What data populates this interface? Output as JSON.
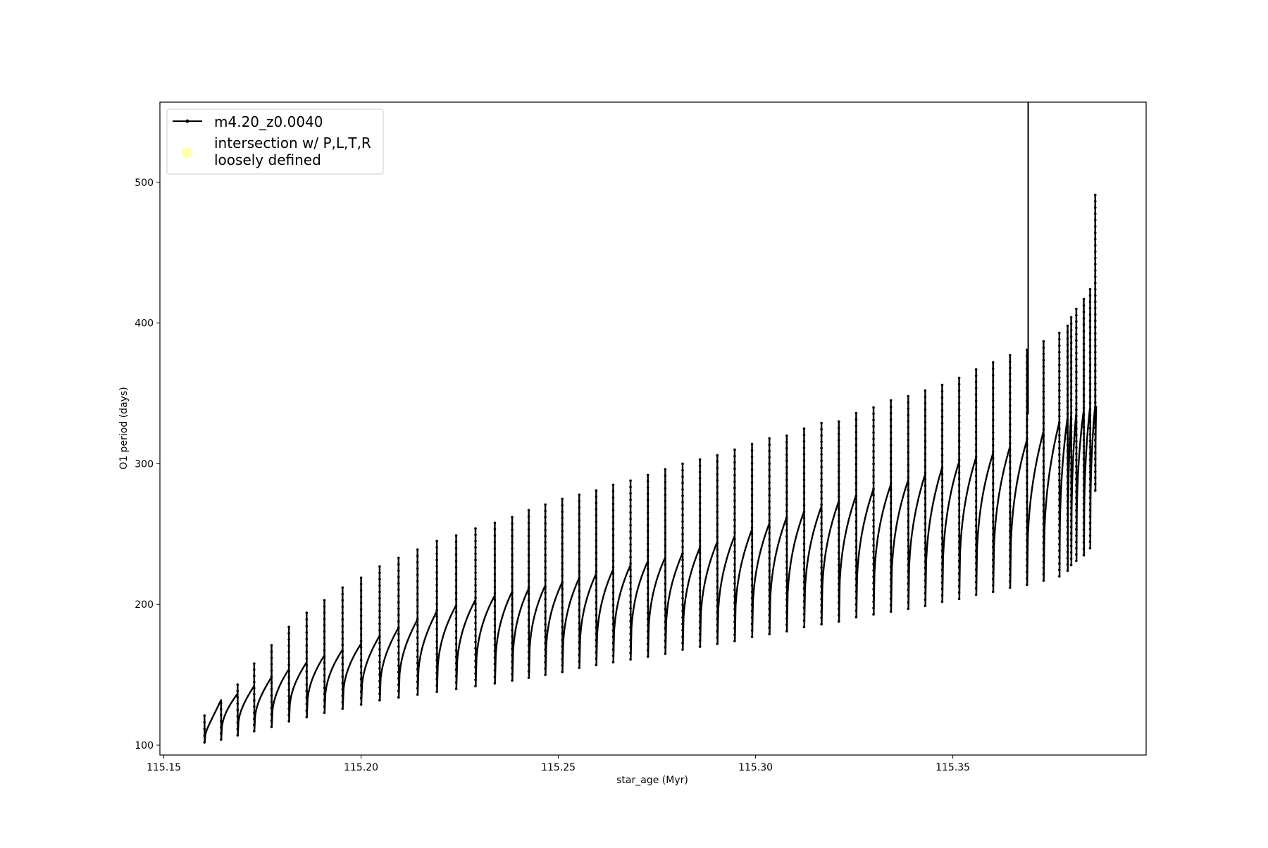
{
  "chart_data": {
    "type": "line",
    "title": "",
    "xlabel": "star_age (Myr)",
    "ylabel": "O1 period (days)",
    "xlim": [
      115.149,
      115.399
    ],
    "ylim": [
      93,
      557
    ],
    "xticks": [
      115.15,
      115.2,
      115.25,
      115.3,
      115.35
    ],
    "xtick_labels": [
      "115.15",
      "115.20",
      "115.25",
      "115.30",
      "115.35"
    ],
    "yticks": [
      100,
      200,
      300,
      400,
      500
    ],
    "ytick_labels": [
      "100",
      "200",
      "300",
      "400",
      "500"
    ],
    "grid": false,
    "legend_position": "upper-left",
    "colors": {
      "line": "#000000",
      "intersection": "#ffffb3"
    },
    "series": [
      {
        "name": "m4.20_z0.0040",
        "style": "line-with-dot-markers",
        "x_range": [
          115.1603,
          115.3861
        ],
        "pulse_count": 56,
        "pulse_peak_x": [
          115.1603,
          115.1645,
          115.1687,
          115.1729,
          115.1773,
          115.1817,
          115.1862,
          115.1907,
          115.1953,
          115.2,
          115.2047,
          115.2095,
          115.2143,
          115.2192,
          115.2241,
          115.229,
          115.2339,
          115.2383,
          115.2425,
          115.2467,
          115.251,
          115.2553,
          115.2596,
          115.2639,
          115.2683,
          115.2727,
          115.2771,
          115.2815,
          115.2859,
          115.2903,
          115.2947,
          115.2991,
          115.3035,
          115.3079,
          115.3123,
          115.3167,
          115.3211,
          115.3255,
          115.3299,
          115.3343,
          115.3387,
          115.343,
          115.3473,
          115.3516,
          115.3559,
          115.3602,
          115.3645,
          115.3688,
          115.373,
          115.377,
          115.3791,
          115.38,
          115.3813,
          115.3832,
          115.3848,
          115.3861
        ],
        "pulse_peak_y": [
          121,
          130,
          143,
          158,
          171,
          184,
          194,
          203,
          212,
          219,
          227,
          233,
          239,
          245,
          249,
          254,
          258,
          262,
          267,
          271,
          275,
          278,
          281,
          285,
          288,
          292,
          296,
          300,
          303,
          306,
          310,
          314,
          318,
          320,
          325,
          329,
          330,
          336,
          340,
          345,
          348,
          352,
          356,
          361,
          367,
          372,
          377,
          381,
          387,
          393,
          398,
          404,
          410,
          417,
          424,
          491
        ],
        "pulse_min_y": [
          102,
          104,
          107,
          110,
          113,
          117,
          120,
          123,
          126,
          129,
          132,
          134,
          136,
          138,
          140,
          142,
          144,
          146,
          148,
          150,
          152,
          155,
          157,
          159,
          161,
          163,
          165,
          168,
          170,
          172,
          174,
          177,
          179,
          181,
          184,
          186,
          188,
          191,
          193,
          195,
          197,
          199,
          202,
          204,
          207,
          209,
          212,
          214,
          217,
          220,
          224,
          228,
          231,
          235,
          240,
          281
        ],
        "envelope_x": [
          115.1603,
          115.1645,
          115.17,
          115.18,
          115.19,
          115.2,
          115.21,
          115.22,
          115.23,
          115.24,
          115.25,
          115.26,
          115.27,
          115.28,
          115.29,
          115.3,
          115.31,
          115.32,
          115.33,
          115.34,
          115.35,
          115.36,
          115.37,
          115.38,
          115.3861
        ],
        "envelope_y": [
          118,
          132,
          138,
          152,
          163,
          172,
          184,
          196,
          204,
          210,
          215,
          222,
          229,
          235,
          244,
          254,
          264,
          272,
          282,
          289,
          300,
          307,
          318,
          334,
          341
        ]
      },
      {
        "name": "intersection w/ P,L,T,R loosely defined",
        "style": "marker",
        "values": []
      }
    ],
    "vertical_line_x": 115.3691
  },
  "legend": {
    "entries": [
      {
        "label": "m4.20_z0.0040"
      },
      {
        "label_line1": "intersection w/ P,L,T,R",
        "label_line2": "loosely defined"
      }
    ]
  }
}
